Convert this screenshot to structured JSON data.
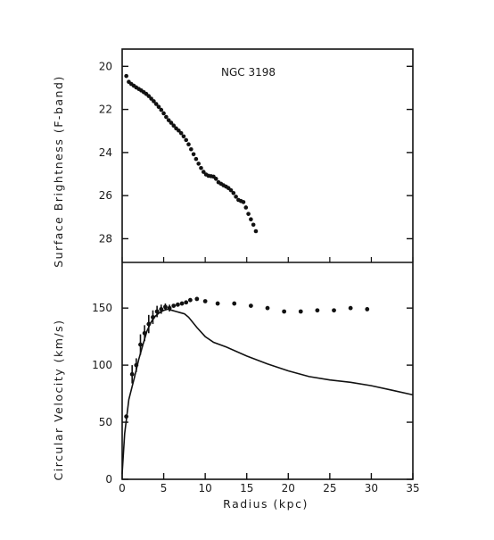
{
  "chart_data": [
    {
      "type": "scatter",
      "annotation": "NGC 3198",
      "xlabel": "",
      "ylabel": "Surface Brightness (F-band)",
      "xlim": [
        0,
        35
      ],
      "ylim": [
        29.1,
        19.2
      ],
      "y_inverted": true,
      "yticks": [
        20,
        22,
        24,
        26,
        28
      ],
      "series": [
        {
          "values_x": [
            0.5,
            0.8,
            1.1,
            1.4,
            1.7,
            2.0,
            2.3,
            2.6,
            2.9,
            3.2,
            3.5,
            3.8,
            4.1,
            4.4,
            4.7,
            5.0,
            5.3,
            5.6,
            5.9,
            6.2,
            6.5,
            6.8,
            7.1,
            7.4,
            7.7,
            8.0,
            8.3,
            8.6,
            8.9,
            9.2,
            9.5,
            9.8,
            10.1,
            10.4,
            10.7,
            11.0,
            11.3,
            11.6,
            11.9,
            12.2,
            12.5,
            12.8,
            13.1,
            13.4,
            13.7,
            14.0,
            14.3,
            14.6,
            14.9,
            15.2,
            15.5,
            15.8,
            16.1
          ],
          "values_y": [
            20.45,
            20.72,
            20.82,
            20.9,
            20.98,
            21.05,
            21.12,
            21.2,
            21.28,
            21.38,
            21.5,
            21.62,
            21.75,
            21.88,
            22.02,
            22.18,
            22.35,
            22.5,
            22.62,
            22.75,
            22.88,
            22.98,
            23.1,
            23.25,
            23.42,
            23.62,
            23.85,
            24.08,
            24.3,
            24.52,
            24.72,
            24.9,
            25.02,
            25.08,
            25.1,
            25.12,
            25.22,
            25.38,
            25.45,
            25.52,
            25.58,
            25.65,
            25.75,
            25.88,
            26.05,
            26.2,
            26.25,
            26.3,
            26.55,
            26.85,
            27.1,
            27.35,
            27.65
          ]
        }
      ]
    },
    {
      "type": "line",
      "xlabel": "Radius (kpc)",
      "ylabel": "Circular Velocity (km/s)",
      "xlim": [
        0,
        35
      ],
      "ylim": [
        0,
        190
      ],
      "xticks": [
        0,
        5,
        10,
        15,
        20,
        25,
        30,
        35
      ],
      "yticks": [
        0,
        50,
        100,
        150
      ],
      "series": [
        {
          "kind": "points",
          "values_x": [
            0.5,
            1.2,
            1.7,
            2.2,
            2.7,
            3.2,
            3.7,
            4.2,
            4.7,
            5.2,
            5.7,
            6.2,
            6.7,
            7.2,
            7.7,
            8.2,
            9.0,
            10.0,
            11.5,
            13.5,
            15.5,
            17.5,
            19.5,
            21.5,
            23.5,
            25.5,
            27.5,
            29.5
          ],
          "values_y": [
            55,
            92,
            100,
            118,
            128,
            136,
            142,
            147,
            149,
            151,
            150,
            152,
            153,
            154,
            155,
            157,
            158,
            156,
            154,
            154,
            152,
            150,
            147,
            147,
            148,
            148,
            150,
            149
          ],
          "error_y": [
            0,
            8,
            6,
            9,
            7,
            8,
            6,
            5,
            4,
            3,
            3,
            0,
            0,
            0,
            0,
            0,
            0,
            0,
            0,
            0,
            0,
            0,
            0,
            0,
            0,
            0,
            0,
            0
          ]
        },
        {
          "kind": "line",
          "values_x": [
            0,
            0.3,
            0.8,
            1.5,
            2.0,
            2.5,
            3.0,
            3.5,
            4.0,
            4.5,
            5.0,
            5.5,
            6.0,
            6.5,
            7.0,
            7.5,
            8.0,
            9.0,
            10.0,
            11.0,
            12.5,
            15.0,
            17.5,
            20.0,
            22.5,
            25.0,
            27.5,
            30.0,
            32.5,
            35.0
          ],
          "values_y": [
            5,
            40,
            70,
            90,
            105,
            118,
            130,
            138,
            143,
            146,
            148,
            149,
            148,
            147,
            146,
            145,
            142,
            133,
            125,
            120,
            116,
            108,
            101,
            95,
            90,
            87,
            85,
            82,
            78,
            74
          ]
        }
      ]
    }
  ]
}
